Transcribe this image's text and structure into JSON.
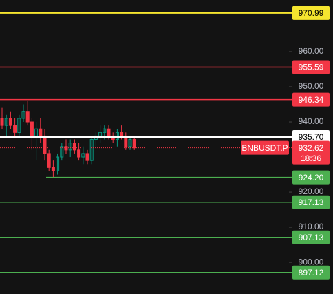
{
  "chart_data": {
    "type": "candlestick",
    "categories": [
      null,
      null,
      null,
      null,
      null,
      null,
      null,
      null,
      null,
      null,
      null,
      null,
      null,
      null,
      null,
      null,
      null,
      null,
      null,
      null,
      null,
      null,
      null,
      null,
      null,
      null,
      null,
      null,
      null,
      null,
      null,
      null
    ],
    "open": [
      941,
      939,
      941,
      939,
      937,
      941,
      943,
      940,
      936,
      938,
      936,
      931,
      927,
      926,
      930,
      933,
      932,
      934,
      932,
      930,
      931,
      929,
      935,
      936,
      937,
      938,
      936,
      935,
      937,
      936,
      933,
      935
    ],
    "high": [
      944,
      942,
      943,
      941,
      942,
      945,
      946,
      941,
      940,
      941,
      938,
      932,
      929,
      931,
      934,
      935,
      935,
      935,
      934,
      933,
      932,
      936,
      937,
      939,
      939,
      939,
      937,
      938,
      939,
      937,
      936,
      936
    ],
    "low": [
      938,
      936,
      938,
      936,
      936,
      940,
      939,
      932,
      929,
      934,
      929,
      926,
      924.2,
      925,
      929,
      931,
      930,
      931,
      929,
      928,
      928,
      928,
      933,
      934,
      935,
      935,
      934,
      933,
      935,
      932,
      932,
      932
    ],
    "close": [
      939,
      941,
      939,
      937,
      941,
      943,
      940,
      936,
      938,
      936,
      931,
      927,
      926,
      930,
      933,
      932,
      934,
      932,
      930,
      931,
      929,
      935,
      936,
      937,
      938,
      936,
      935,
      937,
      936,
      933,
      935,
      932.62
    ],
    "up_color": "#089981",
    "down_color": "#f23645",
    "ylim": [
      891,
      974.7
    ],
    "yticks": [
      {
        "value": 900,
        "label": "900.00"
      },
      {
        "value": 910,
        "label": "910.00"
      },
      {
        "value": 920,
        "label": "920.00"
      },
      {
        "value": 940,
        "label": "940.00"
      },
      {
        "value": 950,
        "label": "950.00"
      },
      {
        "value": 960,
        "label": "960.00"
      }
    ],
    "levels": [
      {
        "value": 970.99,
        "label": "970.99",
        "color": "#f5e52f",
        "style": "solid"
      },
      {
        "value": 955.59,
        "label": "955.59",
        "color": "#f23645",
        "style": "solid"
      },
      {
        "value": 946.34,
        "label": "946.34",
        "color": "#f23645",
        "style": "solid"
      },
      {
        "value": 935.7,
        "label": "935.70",
        "color": "#ffffff",
        "style": "solid"
      },
      {
        "value": 924.2,
        "label": "924.20",
        "color": "#4caf50",
        "style": "solid"
      },
      {
        "value": 917.13,
        "label": "917.13",
        "color": "#4caf50",
        "style": "solid"
      },
      {
        "value": 907.13,
        "label": "907.13",
        "color": "#4caf50",
        "style": "solid"
      },
      {
        "value": 897.12,
        "label": "897.12",
        "color": "#4caf50",
        "style": "solid"
      }
    ],
    "current": {
      "value": 932.62,
      "label": "932.62",
      "symbol": "BNBUSDT.P",
      "countdown": "18:36",
      "color": "#f23645"
    }
  }
}
